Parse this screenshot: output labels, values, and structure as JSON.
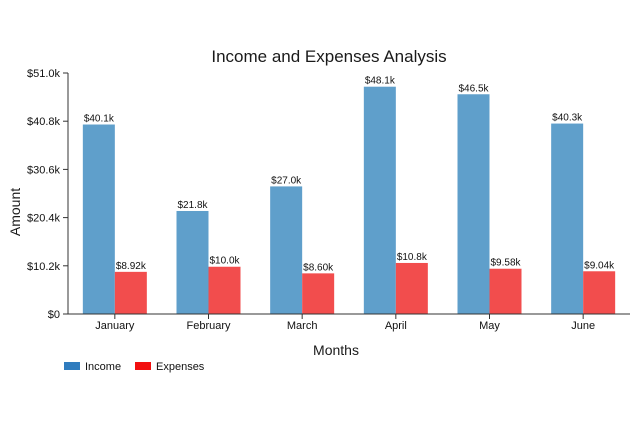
{
  "chart_data": {
    "type": "bar",
    "title": "Income and Expenses Analysis",
    "xlabel": "Months",
    "ylabel": "Amount",
    "categories": [
      "January",
      "February",
      "March",
      "April",
      "May",
      "June"
    ],
    "series": [
      {
        "name": "Income",
        "color": "#5f9fcb",
        "legend_color": "#2f7cbe",
        "values": [
          40100,
          21800,
          27000,
          48100,
          46500,
          40300
        ],
        "labels": [
          "$40.1k",
          "$21.8k",
          "$27.0k",
          "$48.1k",
          "$46.5k",
          "$40.3k"
        ]
      },
      {
        "name": "Expenses",
        "color": "#f24d4d",
        "legend_color": "#f20f0f",
        "values": [
          8920,
          10000,
          8600,
          10800,
          9580,
          9040
        ],
        "labels": [
          "$8.92k",
          "$10.0k",
          "$8.60k",
          "$10.8k",
          "$9.58k",
          "$9.04k"
        ]
      }
    ],
    "ylim": [
      0,
      51000
    ],
    "yticks": [
      0,
      10200,
      20400,
      30600,
      40800,
      51000
    ],
    "ytick_labels": [
      "$0",
      "$10.2k",
      "$20.4k",
      "$30.6k",
      "$40.8k",
      "$51.0k"
    ],
    "grid": false,
    "legend_position": "bottom-left"
  }
}
